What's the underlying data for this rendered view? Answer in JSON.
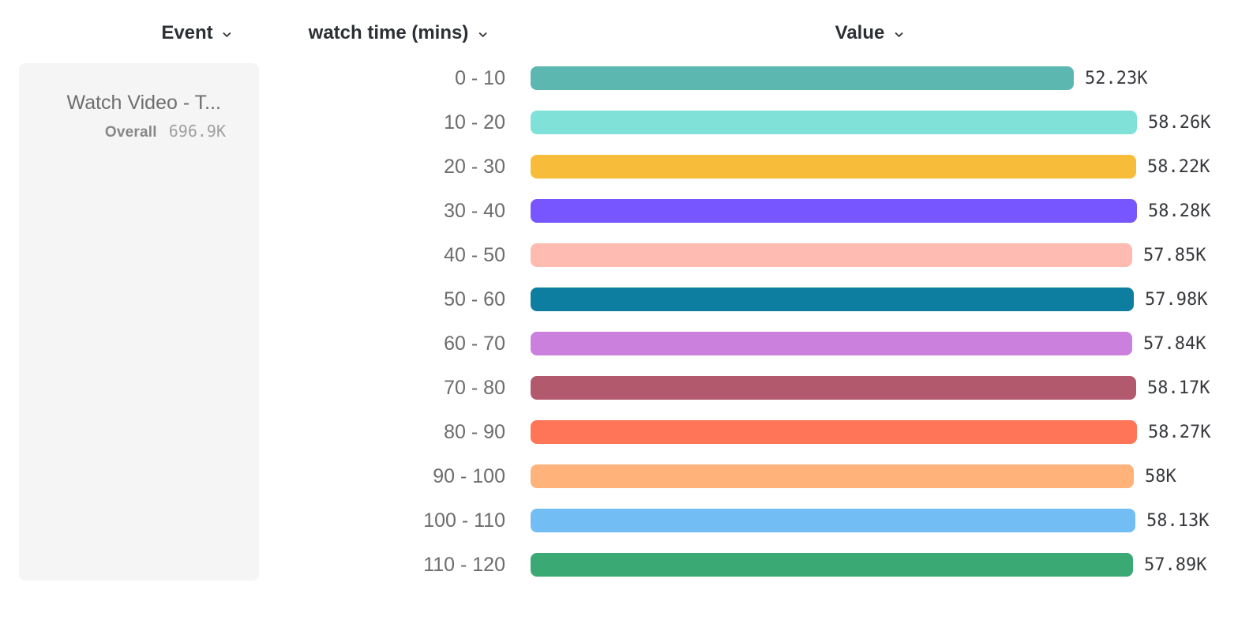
{
  "toolbar": {
    "columns": [
      {
        "label": "Event"
      },
      {
        "label": "watch time (mins)"
      },
      {
        "label": "Value"
      }
    ]
  },
  "event_card": {
    "title": "Watch Video - T...",
    "overall_label": "Overall",
    "overall_value": "696.9K",
    "background": "#f5f5f5"
  },
  "chart_data": {
    "type": "bar",
    "orientation": "horizontal",
    "title": "",
    "xlabel": "Value",
    "ylabel": "watch time (mins)",
    "xlim": [
      0,
      58280
    ],
    "grid": false,
    "legend": false,
    "categories": [
      "0 - 10",
      "10 - 20",
      "20 - 30",
      "30 - 40",
      "40 - 50",
      "50 - 60",
      "60 - 70",
      "70 - 80",
      "80 - 90",
      "90 - 100",
      "100 - 110",
      "110 - 120"
    ],
    "values": [
      52230,
      58260,
      58220,
      58280,
      57850,
      57980,
      57840,
      58170,
      58270,
      58000,
      58130,
      57890
    ],
    "value_labels": [
      "52.23K",
      "58.26K",
      "58.22K",
      "58.28K",
      "57.85K",
      "57.98K",
      "57.84K",
      "58.17K",
      "58.27K",
      "58K",
      "58.13K",
      "57.89K"
    ],
    "colors": [
      "#5BB7AF",
      "#80E1D9",
      "#F8BC3B",
      "#7856FF",
      "#FEBBB2",
      "#0D7EA0",
      "#CA80DC",
      "#B2596E",
      "#FF7557",
      "#FFB27A",
      "#72BEF4",
      "#3BA974"
    ]
  }
}
